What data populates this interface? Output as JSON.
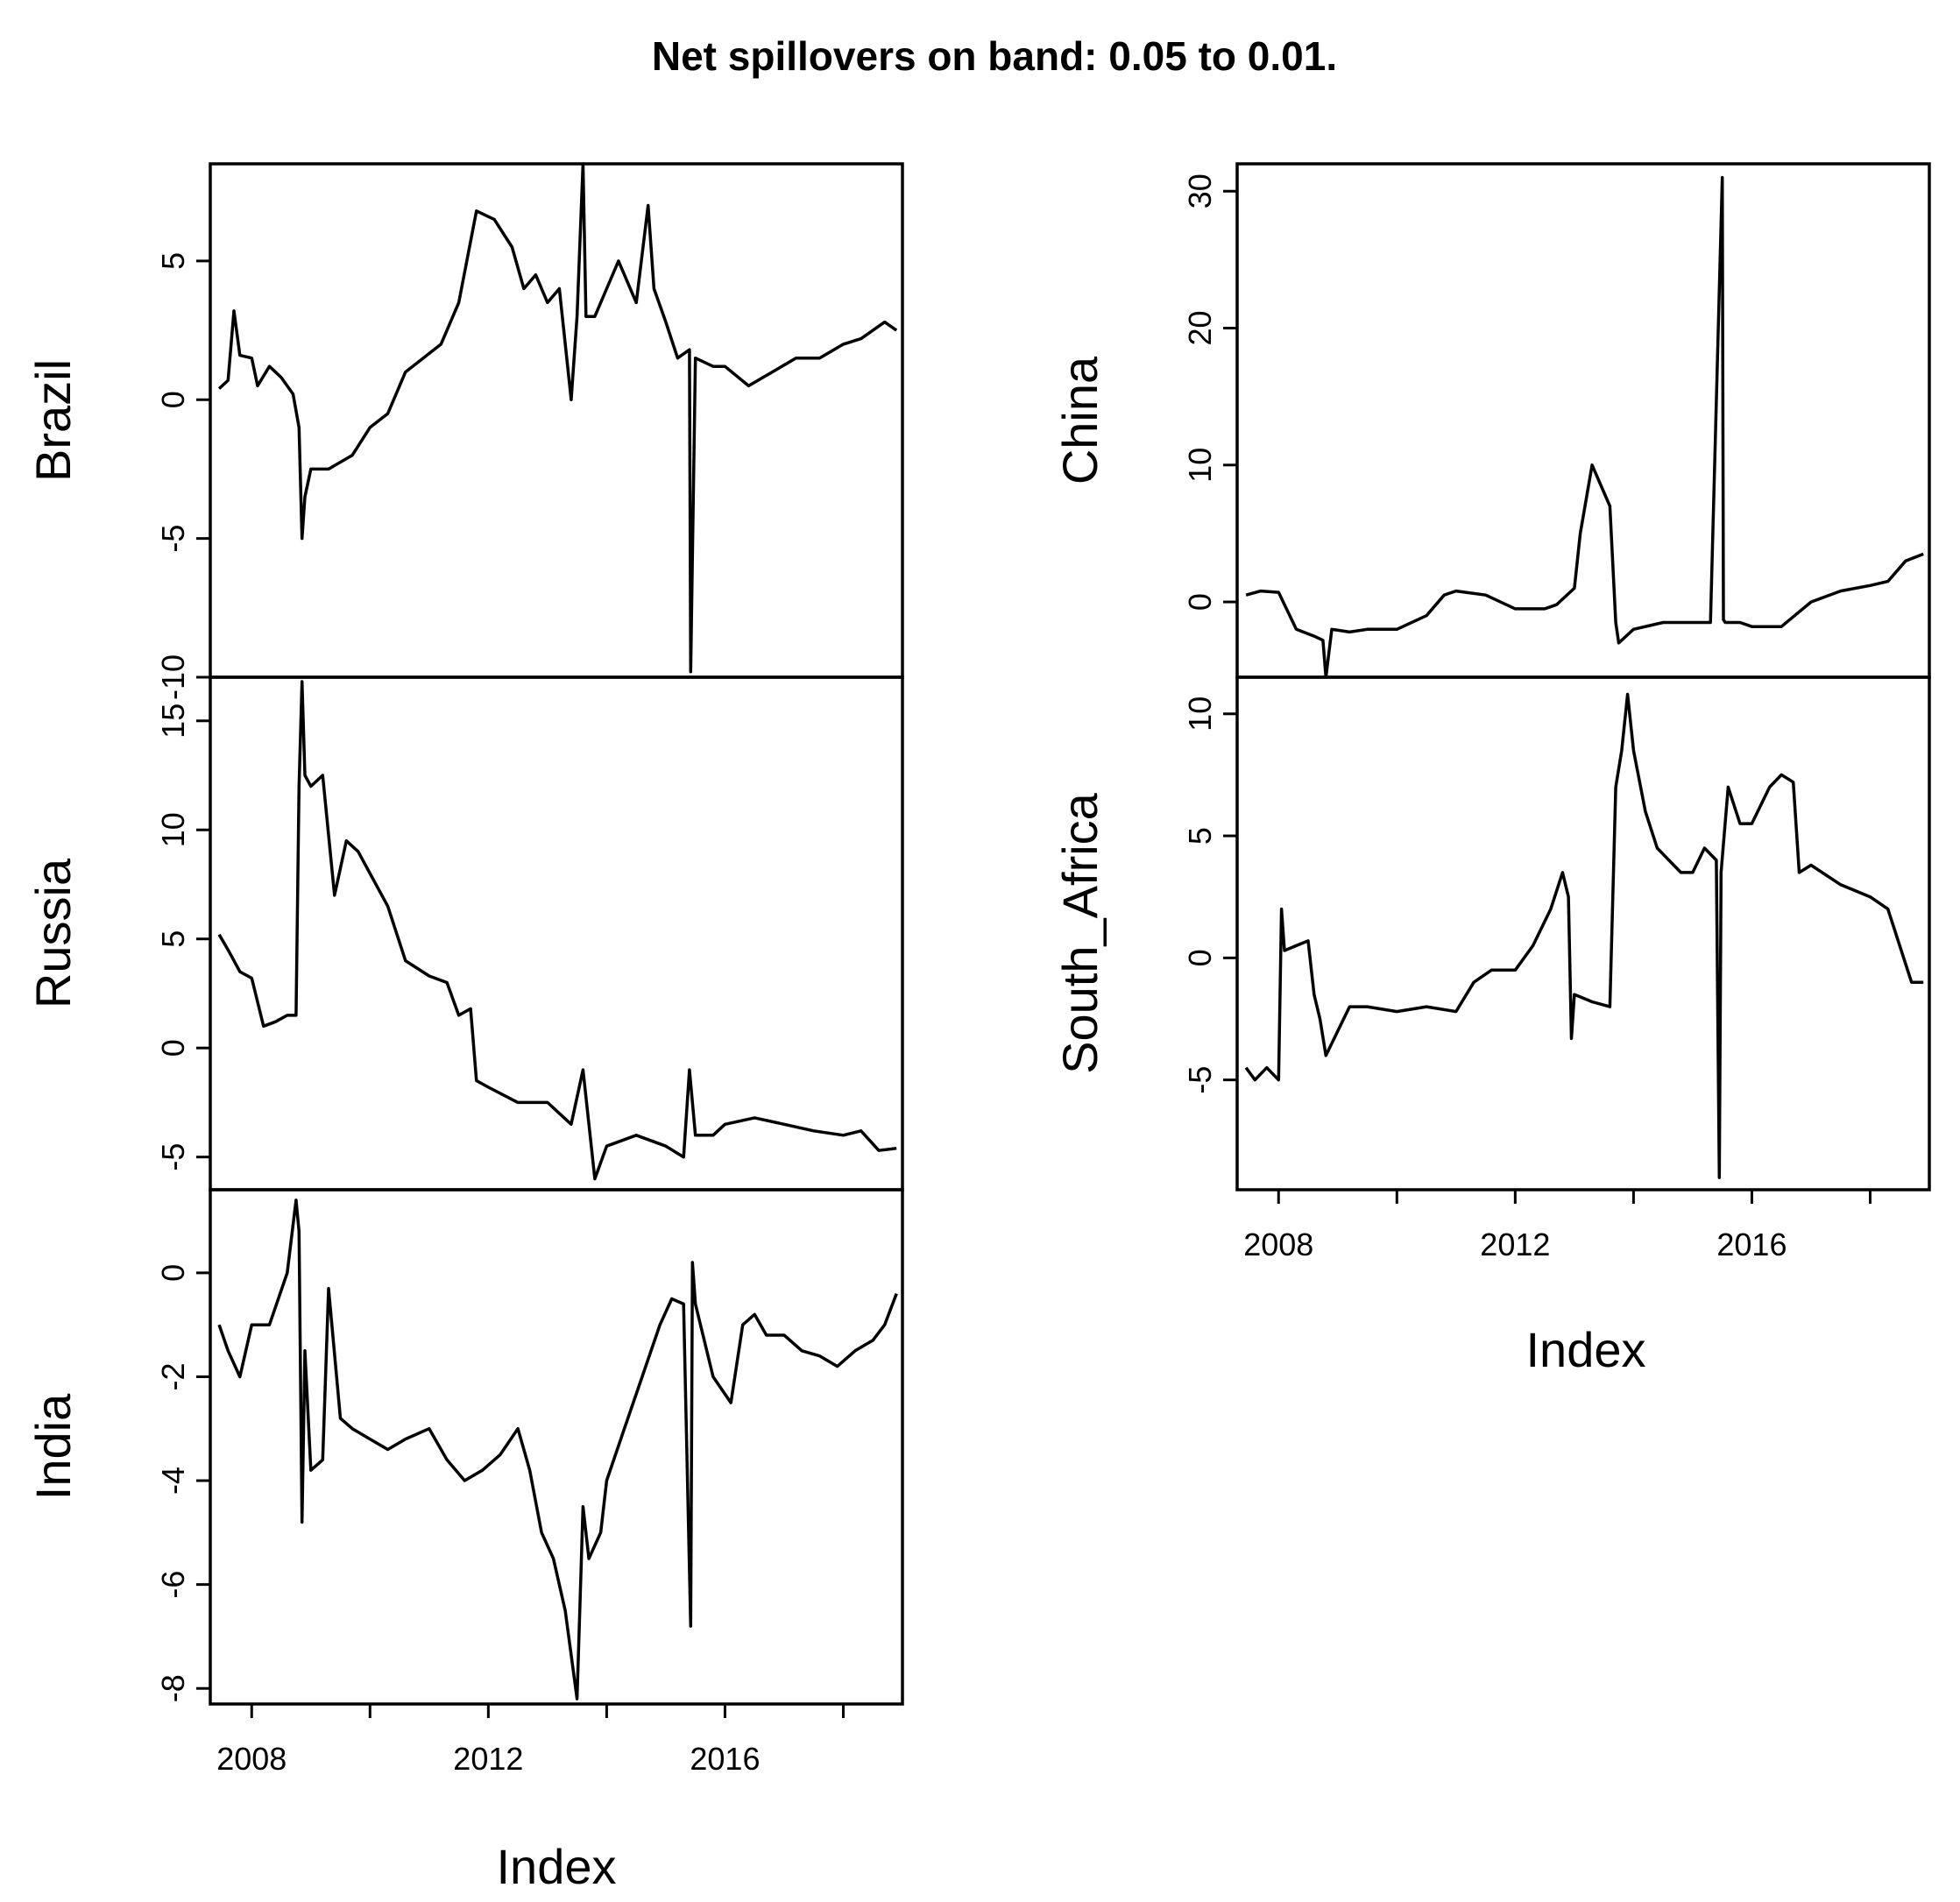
{
  "chart_data": {
    "type": "line",
    "title": "Net spillovers on band: 0.05 to 0.01.",
    "xlabel": "Index",
    "x_ticks": [
      "2008",
      "2012",
      "2016"
    ],
    "xlim": [
      2007.3,
      2019.0
    ],
    "panels": [
      {
        "name": "Brazil",
        "ylabel": "Brazil",
        "ylim": [
          -10,
          8.5
        ],
        "yticks": [
          "-10",
          "-5",
          "0",
          "5"
        ],
        "x": [
          2007.45,
          2007.6,
          2007.7,
          2007.8,
          2008.0,
          2008.1,
          2008.3,
          2008.5,
          2008.7,
          2008.8,
          2008.85,
          2008.9,
          2009.0,
          2009.3,
          2009.7,
          2010.0,
          2010.3,
          2010.6,
          2010.9,
          2011.2,
          2011.5,
          2011.8,
          2012.1,
          2012.4,
          2012.6,
          2012.8,
          2013.0,
          2013.2,
          2013.4,
          2013.5,
          2013.6,
          2013.65,
          2013.8,
          2014.0,
          2014.2,
          2014.5,
          2014.7,
          2014.8,
          2015.0,
          2015.2,
          2015.4,
          2015.42,
          2015.5,
          2015.8,
          2016.0,
          2016.4,
          2016.8,
          2017.2,
          2017.6,
          2018.0,
          2018.3,
          2018.5,
          2018.7,
          2018.9
        ],
        "values": [
          0.4,
          0.7,
          3.2,
          1.6,
          1.5,
          0.5,
          1.2,
          0.8,
          0.2,
          -1.0,
          -5.0,
          -3.5,
          -2.5,
          -2.5,
          -2.0,
          -1.0,
          -0.5,
          1.0,
          1.5,
          2.0,
          3.5,
          6.8,
          6.5,
          5.5,
          4.0,
          4.5,
          3.5,
          4.0,
          0.0,
          3.0,
          8.5,
          3.0,
          3.0,
          4.0,
          5.0,
          3.5,
          7.0,
          4.0,
          2.8,
          1.5,
          1.8,
          -9.8,
          1.5,
          1.2,
          1.2,
          0.5,
          1.0,
          1.5,
          1.5,
          2.0,
          2.2,
          2.5,
          2.8,
          2.5
        ]
      },
      {
        "name": "Russia",
        "ylabel": "Russia",
        "ylim": [
          -6.5,
          17
        ],
        "yticks": [
          "-5",
          "0",
          "5",
          "10",
          "15"
        ],
        "x": [
          2007.45,
          2007.6,
          2007.8,
          2008.0,
          2008.2,
          2008.4,
          2008.6,
          2008.75,
          2008.8,
          2008.85,
          2008.9,
          2009.0,
          2009.2,
          2009.4,
          2009.6,
          2009.8,
          2010.0,
          2010.3,
          2010.6,
          2011.0,
          2011.3,
          2011.5,
          2011.7,
          2011.8,
          2012.0,
          2012.5,
          2013.0,
          2013.4,
          2013.6,
          2013.8,
          2014.0,
          2014.5,
          2015.0,
          2015.3,
          2015.4,
          2015.5,
          2015.8,
          2016.0,
          2016.5,
          2017.0,
          2017.5,
          2018.0,
          2018.3,
          2018.6,
          2018.9
        ],
        "values": [
          5.2,
          4.5,
          3.5,
          3.2,
          1.0,
          1.2,
          1.5,
          1.5,
          12.0,
          16.8,
          12.5,
          12.0,
          12.5,
          7.0,
          9.5,
          9.0,
          8.0,
          6.5,
          4.0,
          3.3,
          3.0,
          1.5,
          1.8,
          -1.5,
          -1.8,
          -2.5,
          -2.5,
          -3.5,
          -1.0,
          -6.0,
          -4.5,
          -4.0,
          -4.5,
          -5.0,
          -1.0,
          -4.0,
          -4.0,
          -3.5,
          -3.2,
          -3.5,
          -3.8,
          -4.0,
          -3.8,
          -4.7,
          -4.6
        ]
      },
      {
        "name": "India",
        "ylabel": "India",
        "ylim": [
          -8.3,
          1.6
        ],
        "yticks": [
          "-8",
          "-6",
          "-4",
          "-2",
          "0"
        ],
        "x": [
          2007.45,
          2007.6,
          2007.8,
          2008.0,
          2008.3,
          2008.6,
          2008.75,
          2008.8,
          2008.85,
          2008.9,
          2009.0,
          2009.2,
          2009.3,
          2009.5,
          2009.7,
          2010.0,
          2010.3,
          2010.6,
          2011.0,
          2011.3,
          2011.6,
          2011.9,
          2012.2,
          2012.5,
          2012.7,
          2012.9,
          2013.1,
          2013.3,
          2013.5,
          2013.6,
          2013.7,
          2013.9,
          2014.0,
          2014.3,
          2014.6,
          2014.9,
          2015.1,
          2015.3,
          2015.42,
          2015.45,
          2015.5,
          2015.8,
          2016.1,
          2016.3,
          2016.5,
          2016.7,
          2017.0,
          2017.3,
          2017.6,
          2017.9,
          2018.2,
          2018.5,
          2018.7,
          2018.9
        ],
        "values": [
          -1.0,
          -1.5,
          -2.0,
          -1.0,
          -1.0,
          0.0,
          1.4,
          0.8,
          -4.8,
          -1.5,
          -3.8,
          -3.6,
          -0.3,
          -2.8,
          -3.0,
          -3.2,
          -3.4,
          -3.2,
          -3.0,
          -3.6,
          -4.0,
          -3.8,
          -3.5,
          -3.0,
          -3.8,
          -5.0,
          -5.5,
          -6.5,
          -8.2,
          -4.5,
          -5.5,
          -5.0,
          -4.0,
          -3.0,
          -2.0,
          -1.0,
          -0.5,
          -0.6,
          -6.8,
          0.2,
          -0.6,
          -2.0,
          -2.5,
          -1.0,
          -0.8,
          -1.2,
          -1.2,
          -1.5,
          -1.6,
          -1.8,
          -1.5,
          -1.3,
          -1.0,
          -0.4
        ]
      },
      {
        "name": "China",
        "ylabel": "China",
        "ylim": [
          -5.5,
          32
        ],
        "yticks": [
          "0",
          "10",
          "20",
          "30"
        ],
        "x": [
          2007.45,
          2007.7,
          2008.0,
          2008.3,
          2008.6,
          2008.75,
          2008.8,
          2008.9,
          2009.2,
          2009.5,
          2010.0,
          2010.5,
          2010.8,
          2011.0,
          2011.5,
          2012.0,
          2012.5,
          2012.7,
          2013.0,
          2013.1,
          2013.3,
          2013.5,
          2013.6,
          2013.7,
          2013.75,
          2014.0,
          2014.5,
          2015.0,
          2015.3,
          2015.5,
          2015.52,
          2015.55,
          2015.8,
          2016.0,
          2016.5,
          2017.0,
          2017.5,
          2018.0,
          2018.3,
          2018.6,
          2018.9
        ],
        "values": [
          0.5,
          0.8,
          0.7,
          -2.0,
          -2.5,
          -2.8,
          -5.5,
          -2.0,
          -2.2,
          -2.0,
          -2.0,
          -1.0,
          0.5,
          0.8,
          0.5,
          -0.5,
          -0.5,
          -0.2,
          1.0,
          5.0,
          10.0,
          8.0,
          7.0,
          -1.5,
          -3.0,
          -2.0,
          -1.5,
          -1.5,
          -1.5,
          31.0,
          -1.3,
          -1.5,
          -1.5,
          -1.8,
          -1.8,
          0.0,
          0.8,
          1.2,
          1.5,
          3.0,
          3.5
        ]
      },
      {
        "name": "South_Africa",
        "ylabel": "South_Africa",
        "ylim": [
          -9.5,
          11.5
        ],
        "yticks": [
          "-5",
          "0",
          "5",
          "10"
        ],
        "x": [
          2007.45,
          2007.6,
          2007.8,
          2008.0,
          2008.05,
          2008.1,
          2008.3,
          2008.5,
          2008.6,
          2008.7,
          2008.8,
          2009.0,
          2009.2,
          2009.5,
          2010.0,
          2010.5,
          2011.0,
          2011.3,
          2011.6,
          2012.0,
          2012.3,
          2012.6,
          2012.8,
          2012.9,
          2012.95,
          2013.0,
          2013.3,
          2013.6,
          2013.7,
          2013.8,
          2013.9,
          2014.0,
          2014.2,
          2014.4,
          2014.8,
          2015.0,
          2015.2,
          2015.4,
          2015.45,
          2015.48,
          2015.6,
          2015.8,
          2016.0,
          2016.3,
          2016.5,
          2016.7,
          2016.8,
          2017.0,
          2017.5,
          2018.0,
          2018.3,
          2018.5,
          2018.7,
          2018.9
        ],
        "values": [
          -4.5,
          -5.0,
          -4.5,
          -5.0,
          2.0,
          0.3,
          0.5,
          0.7,
          -1.5,
          -2.5,
          -4.0,
          -3.0,
          -2.0,
          -2.0,
          -2.2,
          -2.0,
          -2.2,
          -1.0,
          -0.5,
          -0.5,
          0.5,
          2.0,
          3.5,
          2.5,
          -3.3,
          -1.5,
          -1.8,
          -2.0,
          7.0,
          8.5,
          10.8,
          8.5,
          6.0,
          4.5,
          3.5,
          3.5,
          4.5,
          4.0,
          -9.0,
          3.5,
          7.0,
          5.5,
          5.5,
          7.0,
          7.5,
          7.2,
          3.5,
          3.8,
          3.0,
          2.5,
          2.0,
          0.5,
          -1.0,
          -1.0
        ]
      }
    ]
  }
}
